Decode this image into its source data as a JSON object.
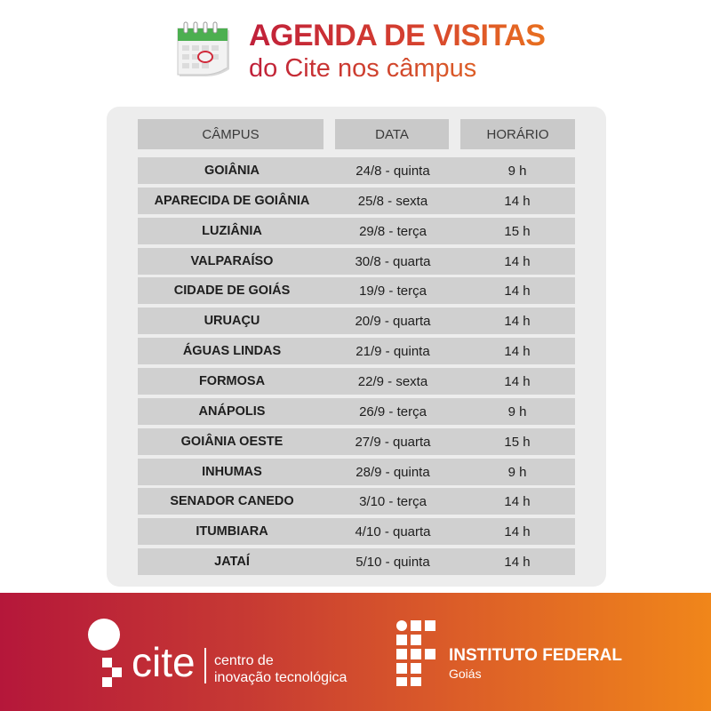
{
  "header": {
    "title_line1": "AGENDA DE VISITAS",
    "title_line2": "do Cite nos câmpus",
    "icon": "calendar-icon"
  },
  "table": {
    "columns": [
      "CÂMPUS",
      "DATA",
      "HORÁRIO"
    ],
    "rows": [
      [
        "GOIÂNIA",
        "24/8 - quinta",
        "9 h"
      ],
      [
        "APARECIDA DE GOIÂNIA",
        "25/8 - sexta",
        "14 h"
      ],
      [
        "LUZIÂNIA",
        "29/8 - terça",
        "15 h"
      ],
      [
        "VALPARAÍSO",
        "30/8 - quarta",
        "14 h"
      ],
      [
        "CIDADE DE GOIÁS",
        "19/9 - terça",
        "14 h"
      ],
      [
        "URUAÇU",
        "20/9 - quarta",
        "14 h"
      ],
      [
        "ÁGUAS LINDAS",
        "21/9 - quinta",
        "14 h"
      ],
      [
        "FORMOSA",
        "22/9 - sexta",
        "14 h"
      ],
      [
        "ANÁPOLIS",
        "26/9 - terça",
        "9 h"
      ],
      [
        "GOIÂNIA OESTE",
        "27/9 - quarta",
        "15 h"
      ],
      [
        "INHUMAS",
        "28/9 - quinta",
        "9 h"
      ],
      [
        "SENADOR CANEDO",
        "3/10 - terça",
        "14 h"
      ],
      [
        "ITUMBIARA",
        "4/10 - quarta",
        "14 h"
      ],
      [
        "JATAÍ",
        "5/10 - quinta",
        "14 h"
      ]
    ]
  },
  "footer": {
    "cite_word": "cite",
    "cite_desc_line1": "centro de",
    "cite_desc_line2": "inovação tecnológica",
    "if_name": "INSTITUTO FEDERAL",
    "if_sub": "Goiás"
  },
  "colors": {
    "title_gradient_start": "#c0203a",
    "title_gradient_end": "#e87020",
    "footer_gradient_start": "#b5173a",
    "footer_gradient_end": "#f0861a",
    "calendar_green": "#4caf50",
    "panel_bg": "#ededed",
    "cell_bg": "#d0d0d0"
  }
}
